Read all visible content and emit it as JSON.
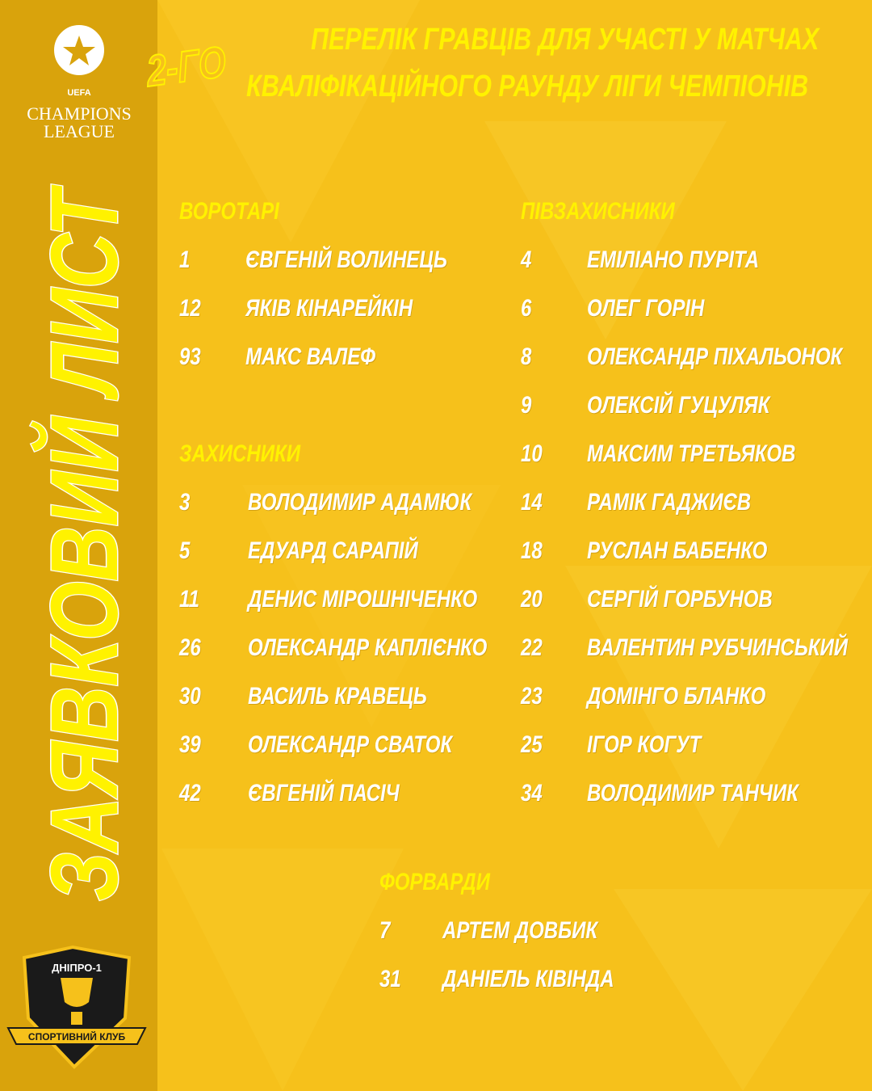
{
  "logo": {
    "lines": [
      "UEFA",
      "CHAMPIONS",
      "LEAGUE"
    ]
  },
  "header": {
    "round": "2-ГО",
    "title_lines": [
      "ПЕРЕЛІК ГРАВЦІВ ДЛЯ УЧАСТІ У МАТЧАХ",
      "КВАЛІФІКАЦІЙНОГО РАУНДУ ЛІГИ ЧЕМПІОНІВ"
    ]
  },
  "side_title": "ЗАЯВКОВИЙ ЛИСТ",
  "club": {
    "name": "ДНІПРО-1",
    "ribbon": "СПОРТИВНИЙ КЛУБ"
  },
  "sections": [
    {
      "title": "ВОРОТАРІ",
      "players": [
        {
          "number": 1,
          "name": "ЄВГЕНІЙ ВОЛИНЕЦЬ"
        },
        {
          "number": 12,
          "name": "ЯКІВ КІНАРЕЙКІН"
        },
        {
          "number": 93,
          "name": "МАКС ВАЛЕФ"
        }
      ]
    },
    {
      "title": "ЗАХИСНИКИ",
      "players": [
        {
          "number": 3,
          "name": "ВОЛОДИМИР АДАМЮК"
        },
        {
          "number": 5,
          "name": "ЕДУАРД САРАПІЙ"
        },
        {
          "number": 11,
          "name": "ДЕНИС МІРОШНІЧЕНКО"
        },
        {
          "number": 26,
          "name": "ОЛЕКСАНДР КАПЛІЄНКО"
        },
        {
          "number": 30,
          "name": "ВАСИЛЬ КРАВЕЦЬ"
        },
        {
          "number": 39,
          "name": "ОЛЕКСАНДР СВАТОК"
        },
        {
          "number": 42,
          "name": "ЄВГЕНІЙ ПАСІЧ"
        }
      ]
    },
    {
      "title": "ПІВЗАХИСНИКИ",
      "players": [
        {
          "number": 4,
          "name": "ЕМІЛІАНО ПУРІТА"
        },
        {
          "number": 6,
          "name": "ОЛЕГ ГОРІН"
        },
        {
          "number": 8,
          "name": "ОЛЕКСАНДР ПІХАЛЬОНОК"
        },
        {
          "number": 9,
          "name": "ОЛЕКСІЙ ГУЦУЛЯК"
        },
        {
          "number": 10,
          "name": "МАКСИМ ТРЕТЬЯКОВ"
        },
        {
          "number": 14,
          "name": "РАМІК ГАДЖИЄВ"
        },
        {
          "number": 18,
          "name": "РУСЛАН БАБЕНКО"
        },
        {
          "number": 20,
          "name": "СЕРГІЙ ГОРБУНОВ"
        },
        {
          "number": 22,
          "name": "ВАЛЕНТИН РУБЧИНСЬКИЙ"
        },
        {
          "number": 23,
          "name": "ДОМІНГО БЛАНКО"
        },
        {
          "number": 25,
          "name": "ІГОР КОГУТ"
        },
        {
          "number": 34,
          "name": "ВОЛОДИМИР ТАНЧИК"
        }
      ]
    },
    {
      "title": "ФОРВАРДИ",
      "players": [
        {
          "number": 7,
          "name": "АРТЕМ ДОВБИК"
        },
        {
          "number": 31,
          "name": "ДАНІЕЛЬ КІВІНДА"
        }
      ]
    }
  ]
}
